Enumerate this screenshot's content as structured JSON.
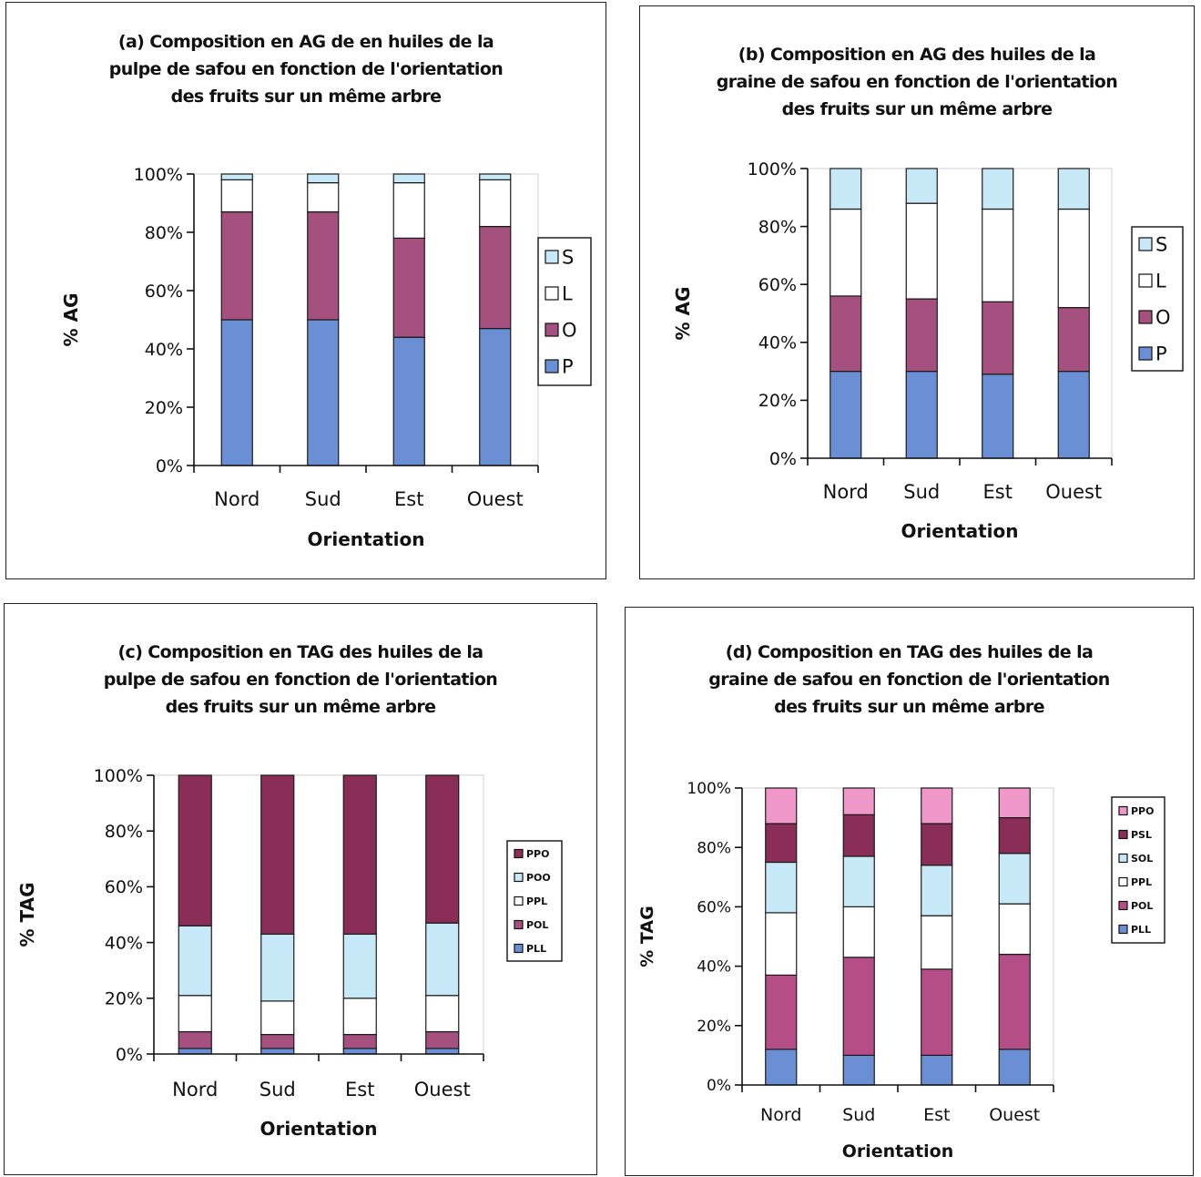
{
  "chart_data": [
    {
      "id": "a",
      "type": "bar",
      "stacked": true,
      "title": "(a) Composition en AG de en huiles de la\npulpe de safou en fonction de l'orientation\ndes fruits sur un même arbre",
      "xlabel": "Orientation",
      "ylabel": "% AG",
      "categories": [
        "Nord",
        "Sud",
        "Est",
        "Ouest"
      ],
      "yticks": [
        "0%",
        "20%",
        "40%",
        "60%",
        "80%",
        "100%"
      ],
      "ylim": [
        0,
        100
      ],
      "legend": [
        "S",
        "L",
        "O",
        "P"
      ],
      "legend_placement": "right",
      "series": [
        {
          "name": "P",
          "color": "#6b8fd4",
          "values": [
            50,
            50,
            44,
            47
          ]
        },
        {
          "name": "O",
          "color": "#a5507e",
          "values": [
            37,
            37,
            34,
            35
          ]
        },
        {
          "name": "L",
          "color": "#ffffff",
          "values": [
            11,
            10,
            19,
            16
          ]
        },
        {
          "name": "S",
          "color": "#c7e8f7",
          "values": [
            2,
            3,
            3,
            2
          ]
        }
      ]
    },
    {
      "id": "b",
      "type": "bar",
      "stacked": true,
      "title": "(b) Composition en AG des huiles de la\ngraine de safou en fonction de l'orientation\ndes fruits sur un même arbre",
      "xlabel": "Orientation",
      "ylabel": "% AG",
      "categories": [
        "Nord",
        "Sud",
        "Est",
        "Ouest"
      ],
      "yticks": [
        "0%",
        "20%",
        "40%",
        "60%",
        "80%",
        "100%"
      ],
      "ylim": [
        0,
        100
      ],
      "legend": [
        "S",
        "L",
        "O",
        "P"
      ],
      "legend_placement": "right",
      "series": [
        {
          "name": "P",
          "color": "#6b8fd4",
          "values": [
            30,
            30,
            29,
            30
          ]
        },
        {
          "name": "O",
          "color": "#a5507e",
          "values": [
            26,
            25,
            25,
            22
          ]
        },
        {
          "name": "L",
          "color": "#ffffff",
          "values": [
            30,
            33,
            32,
            34
          ]
        },
        {
          "name": "S",
          "color": "#c7e8f7",
          "values": [
            14,
            12,
            14,
            14
          ]
        }
      ]
    },
    {
      "id": "c",
      "type": "bar",
      "stacked": true,
      "title": "(c) Composition en TAG des huiles de la\npulpe de safou en fonction de l'orientation\ndes fruits sur un même arbre",
      "xlabel": "Orientation",
      "ylabel": "% TAG",
      "categories": [
        "Nord",
        "Sud",
        "Est",
        "Ouest"
      ],
      "yticks": [
        "0%",
        "20%",
        "40%",
        "60%",
        "80%",
        "100%"
      ],
      "ylim": [
        0,
        100
      ],
      "legend": [
        "PPO",
        "POO",
        "PPL",
        "POL",
        "PLL"
      ],
      "legend_placement": "right",
      "series": [
        {
          "name": "s1",
          "color": "#6b8fd4",
          "values": [
            2,
            2,
            2,
            2
          ]
        },
        {
          "name": "s2",
          "color": "#a5507e",
          "values": [
            6,
            5,
            5,
            6
          ]
        },
        {
          "name": "s3",
          "color": "#ffffff",
          "values": [
            13,
            12,
            13,
            13
          ]
        },
        {
          "name": "s4",
          "color": "#c7e8f7",
          "values": [
            25,
            24,
            23,
            26
          ]
        },
        {
          "name": "s5",
          "color": "#8a2e58",
          "values": [
            54,
            57,
            57,
            53
          ]
        }
      ]
    },
    {
      "id": "d",
      "type": "bar",
      "stacked": true,
      "title": "(d) Composition en TAG des huiles de la\ngraine de safou en fonction de l'orientation\ndes fruits sur un même arbre",
      "xlabel": "Orientation",
      "ylabel": "% TAG",
      "categories": [
        "Nord",
        "Sud",
        "Est",
        "Ouest"
      ],
      "yticks": [
        "0%",
        "20%",
        "40%",
        "60%",
        "80%",
        "100%"
      ],
      "ylim": [
        0,
        100
      ],
      "legend": [
        "PPO",
        "PSL",
        "SOL",
        "PPL",
        "POL",
        "PLL"
      ],
      "legend_placement": "right",
      "series": [
        {
          "name": "s1",
          "color": "#6b8fd4",
          "values": [
            12,
            10,
            10,
            12
          ]
        },
        {
          "name": "s2",
          "color": "#b54d86",
          "values": [
            25,
            33,
            29,
            32
          ]
        },
        {
          "name": "s3",
          "color": "#ffffff",
          "values": [
            21,
            17,
            18,
            17
          ]
        },
        {
          "name": "s4",
          "color": "#c7e8f7",
          "values": [
            17,
            17,
            17,
            17
          ]
        },
        {
          "name": "s5",
          "color": "#8a2e58",
          "values": [
            13,
            14,
            14,
            12
          ]
        },
        {
          "name": "s6",
          "color": "#ef97c8",
          "values": [
            12,
            9,
            12,
            10
          ]
        }
      ]
    }
  ]
}
